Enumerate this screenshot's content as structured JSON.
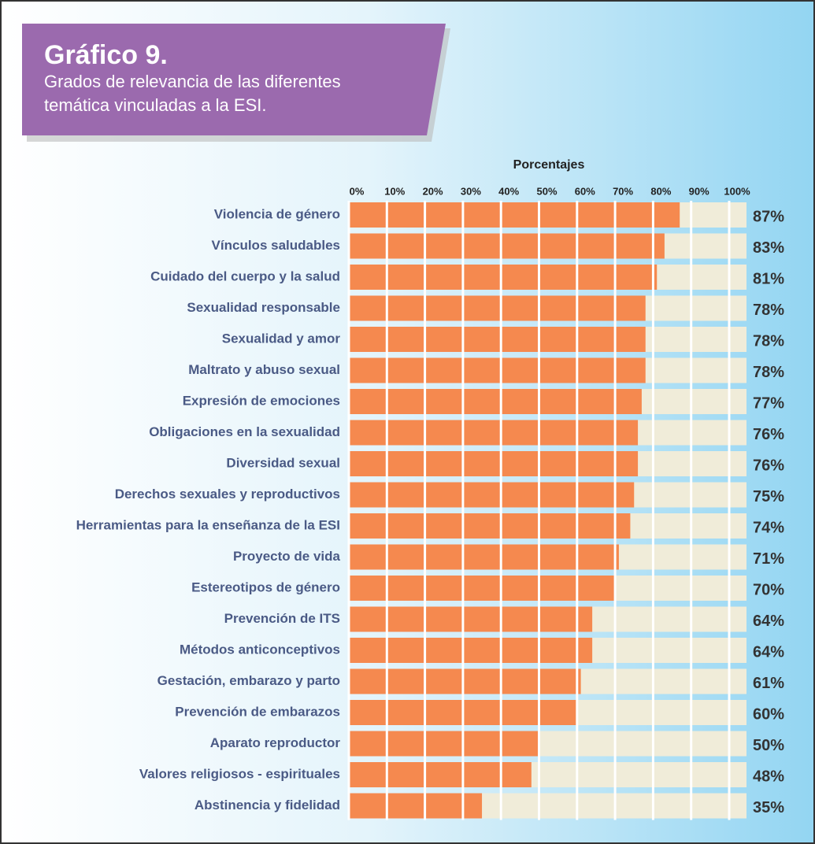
{
  "chart_data": {
    "type": "barh",
    "title": "Gráfico 9.",
    "subtitle": [
      "Grados de relevancia de las diferentes",
      "temática vinculadas a la ESI."
    ],
    "x_label": "Porcentajes",
    "categories": [
      "Violencia de género",
      "Vínculos saludables",
      "Cuidado del cuerpo y la salud",
      "Sexualidad responsable",
      "Sexualidad y amor",
      "Maltrato y abuso sexual",
      "Expresión de emociones",
      "Obligaciones en la sexualidad",
      "Diversidad sexual",
      "Derechos sexuales y reproductivos",
      "Herramientas para la enseñanza de la ESI",
      "Proyecto de vida",
      "Estereotipos de género",
      "Prevención de ITS",
      "Métodos anticonceptivos",
      "Gestación, embarazo y parto",
      "Prevención de embarazos",
      "Aparato reproductor",
      "Valores religiosos - espirituales",
      "Abstinencia y fidelidad"
    ],
    "values": [
      87,
      83,
      81,
      78,
      78,
      78,
      77,
      76,
      76,
      75,
      74,
      71,
      70,
      64,
      64,
      61,
      60,
      50,
      48,
      35
    ],
    "value_labels": [
      "87%",
      "83%",
      "81%",
      "78%",
      "78%",
      "78%",
      "77%",
      "76%",
      "76%",
      "75%",
      "74%",
      "71%",
      "70%",
      "64%",
      "64%",
      "61%",
      "60%",
      "50%",
      "48%",
      "35%"
    ],
    "color": "#f5894f",
    "track_color": "#f0ecd9",
    "xlim": [
      0,
      100
    ],
    "xticks": [
      {
        "value": 0,
        "label": "0%"
      },
      {
        "value": 10,
        "label": "10%"
      },
      {
        "value": 20,
        "label": "20%"
      },
      {
        "value": 30,
        "label": "30%"
      },
      {
        "value": 40,
        "label": "40%"
      },
      {
        "value": 50,
        "label": "50%"
      },
      {
        "value": 60,
        "label": "60%"
      },
      {
        "value": 70,
        "label": "70%"
      },
      {
        "value": 80,
        "label": "80%"
      },
      {
        "value": 90,
        "label": "90%"
      },
      {
        "value": 100,
        "label": "100%"
      }
    ]
  }
}
